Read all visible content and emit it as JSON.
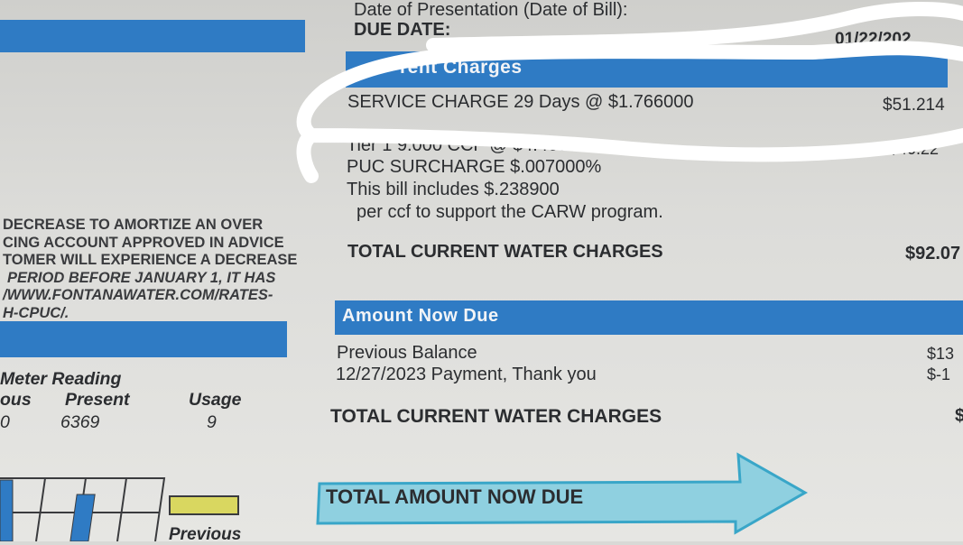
{
  "header": {
    "date_of_presentation_label": "Date of Presentation (Date of Bill):",
    "due_date_label": "DUE DATE:",
    "due_date_value": "01/22/202"
  },
  "current_charges": {
    "title": "rent Charges",
    "lines": [
      {
        "label": "SERVICE CHARGE 29 Days @ $1.766000",
        "amount": "$51.214"
      },
      {
        "label": "Tier 1 9.000 CCF @ $4.469",
        "amount": "$40.22"
      },
      {
        "label": "PUC SURCHARGE $.007000%",
        "amount": ""
      },
      {
        "label": "This bill includes $.238900",
        "amount": ""
      },
      {
        "label": "per ccf to support the CARW program.",
        "amount": ""
      }
    ],
    "total_label": "TOTAL CURRENT WATER CHARGES",
    "total_amount": "$92.07"
  },
  "notice": {
    "lines": [
      "DECREASE TO AMORTIZE AN OVER",
      "CING ACCOUNT APPROVED IN ADVICE",
      "TOMER WILL EXPERIENCE A DECREASE",
      "PERIOD BEFORE JANUARY 1, IT HAS",
      "/WWW.FONTANAWATER.COM/RATES-",
      "H-CPUC/."
    ]
  },
  "meter": {
    "title": "Meter Reading",
    "columns": [
      "ous",
      "Present",
      "Usage"
    ],
    "values": [
      "0",
      "6369",
      "9"
    ]
  },
  "usage_chart": {
    "legend_label": "Previous",
    "legend_color": "#d9d760",
    "bar_color": "#2f7bc4"
  },
  "amount_now_due": {
    "title": "Amount Now Due",
    "lines": [
      {
        "label": "Previous Balance",
        "amount": "$13"
      },
      {
        "label": "12/27/2023 Payment, Thank you",
        "amount": "$-1"
      }
    ],
    "total_label": "TOTAL CURRENT WATER CHARGES",
    "total_amount": "$"
  },
  "total_due": {
    "label": "TOTAL AMOUNT NOW DUE",
    "arrow_color": "#8fd0e0"
  },
  "colors": {
    "accent_blue": "#2f7bc4",
    "redaction": "#ffffff"
  }
}
